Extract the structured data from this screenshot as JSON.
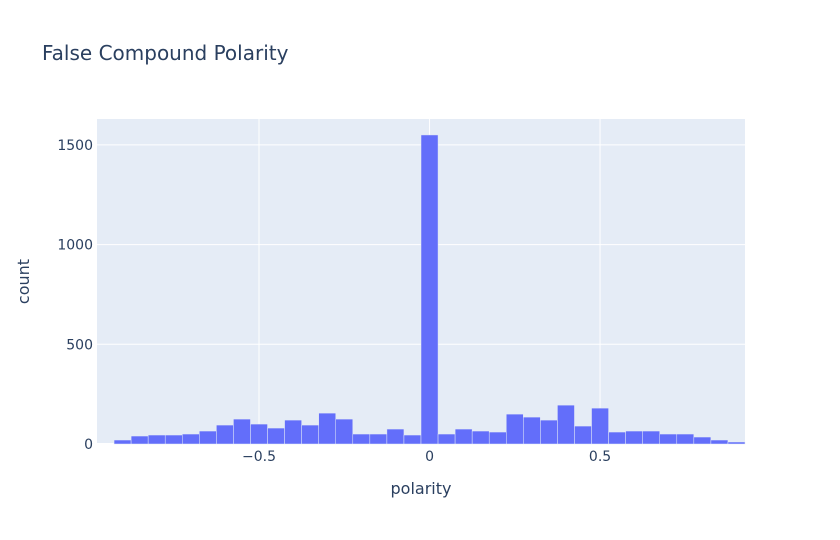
{
  "chart_data": {
    "type": "bar",
    "title": "False Compound Polarity",
    "xlabel": "polarity",
    "ylabel": "count",
    "xlim": [
      -0.975,
      0.925
    ],
    "ylim": [
      0,
      1630
    ],
    "xticks": [
      -0.5,
      0,
      0.5
    ],
    "xtick_labels": [
      "−0.5",
      "0",
      "0.5"
    ],
    "yticks": [
      0,
      500,
      1000,
      1500
    ],
    "ytick_labels": [
      "0",
      "500",
      "1000",
      "1500"
    ],
    "grid": true,
    "legend": "none",
    "bin_width": 0.05,
    "bins": [
      {
        "x0": -0.925,
        "value": 20
      },
      {
        "x0": -0.875,
        "value": 40
      },
      {
        "x0": -0.825,
        "value": 45
      },
      {
        "x0": -0.775,
        "value": 45
      },
      {
        "x0": -0.725,
        "value": 50
      },
      {
        "x0": -0.675,
        "value": 65
      },
      {
        "x0": -0.625,
        "value": 95
      },
      {
        "x0": -0.575,
        "value": 125
      },
      {
        "x0": -0.525,
        "value": 100
      },
      {
        "x0": -0.475,
        "value": 80
      },
      {
        "x0": -0.425,
        "value": 120
      },
      {
        "x0": -0.375,
        "value": 95
      },
      {
        "x0": -0.325,
        "value": 155
      },
      {
        "x0": -0.275,
        "value": 125
      },
      {
        "x0": -0.225,
        "value": 50
      },
      {
        "x0": -0.175,
        "value": 50
      },
      {
        "x0": -0.125,
        "value": 75
      },
      {
        "x0": -0.075,
        "value": 45
      },
      {
        "x0": -0.025,
        "value": 1550
      },
      {
        "x0": 0.025,
        "value": 50
      },
      {
        "x0": 0.075,
        "value": 75
      },
      {
        "x0": 0.125,
        "value": 65
      },
      {
        "x0": 0.175,
        "value": 60
      },
      {
        "x0": 0.225,
        "value": 150
      },
      {
        "x0": 0.275,
        "value": 135
      },
      {
        "x0": 0.325,
        "value": 120
      },
      {
        "x0": 0.375,
        "value": 195
      },
      {
        "x0": 0.425,
        "value": 90
      },
      {
        "x0": 0.475,
        "value": 180
      },
      {
        "x0": 0.525,
        "value": 60
      },
      {
        "x0": 0.575,
        "value": 65
      },
      {
        "x0": 0.625,
        "value": 65
      },
      {
        "x0": 0.675,
        "value": 50
      },
      {
        "x0": 0.725,
        "value": 50
      },
      {
        "x0": 0.775,
        "value": 35
      },
      {
        "x0": 0.825,
        "value": 20
      },
      {
        "x0": 0.875,
        "value": 10
      }
    ],
    "colors": {
      "bar": "#636efa",
      "plot_bg": "#e5ecf6",
      "grid": "#ffffff",
      "text": "#2a3f5f"
    }
  }
}
